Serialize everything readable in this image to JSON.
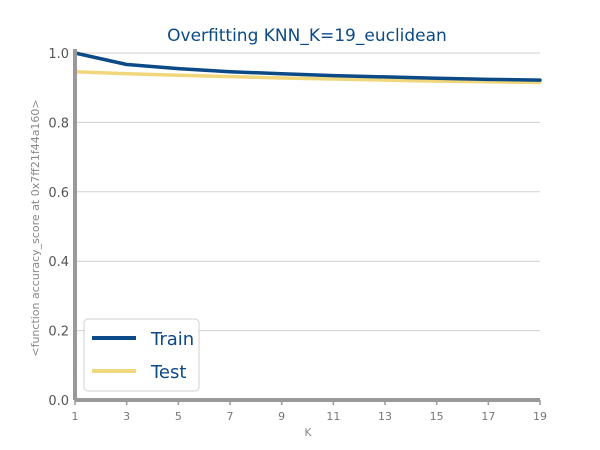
{
  "chart_data": {
    "type": "line",
    "title": "Overfitting KNN_K=19_euclidean",
    "xlabel": "K",
    "ylabel": "<function accuracy_score at 0x7ff21f44a160>",
    "x": [
      1,
      3,
      5,
      7,
      9,
      11,
      13,
      15,
      17,
      19
    ],
    "xticks": [
      1,
      3,
      5,
      7,
      9,
      11,
      13,
      15,
      17,
      19
    ],
    "yticks": [
      0.0,
      0.2,
      0.4,
      0.6,
      0.8,
      1.0
    ],
    "xlim": [
      1,
      19
    ],
    "ylim": [
      0.0,
      1.0
    ],
    "grid": "horizontal",
    "legend": "bottom-left",
    "series": [
      {
        "name": "Train",
        "color": "#0b4a86",
        "values": [
          1.0,
          0.967,
          0.955,
          0.946,
          0.94,
          0.935,
          0.931,
          0.927,
          0.924,
          0.922
        ]
      },
      {
        "name": "Test",
        "color": "#f0d77c",
        "values": [
          0.946,
          0.94,
          0.936,
          0.932,
          0.928,
          0.925,
          0.922,
          0.919,
          0.917,
          0.915
        ]
      }
    ]
  }
}
